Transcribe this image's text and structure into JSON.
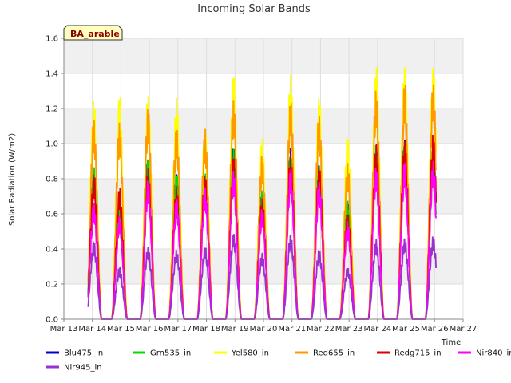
{
  "chart_data": {
    "type": "line",
    "title": "Incoming Solar Bands",
    "xlabel": "Time",
    "ylabel": "Solar Radiation (W/m2)",
    "badge": "BA_arable",
    "ylim": [
      0,
      1.6
    ],
    "yticks": [
      0.0,
      0.2,
      0.4,
      0.6,
      0.8,
      1.0,
      1.2,
      1.4,
      1.6
    ],
    "xlim": [
      13,
      27
    ],
    "xticks": [
      {
        "v": 13,
        "label": "Mar 13"
      },
      {
        "v": 14,
        "label": "Mar 14"
      },
      {
        "v": 15,
        "label": "Mar 15"
      },
      {
        "v": 16,
        "label": "Mar 16"
      },
      {
        "v": 17,
        "label": "Mar 17"
      },
      {
        "v": 18,
        "label": "Mar 18"
      },
      {
        "v": 19,
        "label": "Mar 19"
      },
      {
        "v": 20,
        "label": "Mar 20"
      },
      {
        "v": 21,
        "label": "Mar 21"
      },
      {
        "v": 22,
        "label": "Mar 22"
      },
      {
        "v": 23,
        "label": "Mar 23"
      },
      {
        "v": 24,
        "label": "Mar 24"
      },
      {
        "v": 25,
        "label": "Mar 25"
      },
      {
        "v": 26,
        "label": "Mar 26"
      },
      {
        "v": 27,
        "label": "Mar 27"
      }
    ],
    "grid": true,
    "legend_position": "bottom",
    "series": [
      {
        "name": "Blu475_in",
        "color": "#0000cc",
        "peaks": [
          0.85,
          0.62,
          0.92,
          0.84,
          0.83,
          1.0,
          0.73,
          0.98,
          0.9,
          0.68,
          1.0,
          1.03,
          0.98
        ]
      },
      {
        "name": "Grn535_in",
        "color": "#00dd00",
        "peaks": [
          0.88,
          0.63,
          0.93,
          0.85,
          0.84,
          0.99,
          0.74,
          0.96,
          0.88,
          0.69,
          1.0,
          1.02,
          1.0
        ]
      },
      {
        "name": "Yel580_in",
        "color": "#ffff00",
        "peaks": [
          1.27,
          1.3,
          1.3,
          1.27,
          1.12,
          1.41,
          1.06,
          1.4,
          1.29,
          1.06,
          1.46,
          1.46,
          1.45
        ]
      },
      {
        "name": "Red655_in",
        "color": "#ff9900",
        "peaks": [
          1.16,
          1.14,
          1.22,
          1.12,
          1.09,
          1.28,
          0.94,
          1.27,
          1.18,
          0.9,
          1.33,
          1.36,
          1.38
        ]
      },
      {
        "name": "Redg715_in",
        "color": "#dd0000",
        "peaks": [
          0.84,
          0.76,
          0.88,
          0.76,
          0.84,
          0.94,
          0.7,
          0.95,
          0.88,
          0.62,
          1.0,
          1.04,
          1.06
        ]
      },
      {
        "name": "Nir840_in",
        "color": "#ff00ff",
        "peaks": [
          0.68,
          0.6,
          0.8,
          0.7,
          0.76,
          0.86,
          0.64,
          0.87,
          0.8,
          0.56,
          0.89,
          0.91,
          0.92
        ]
      },
      {
        "name": "Nir945_in",
        "color": "#9933cc",
        "peaks": [
          0.45,
          0.3,
          0.42,
          0.4,
          0.42,
          0.5,
          0.38,
          0.49,
          0.4,
          0.3,
          0.46,
          0.47,
          0.48
        ]
      }
    ],
    "day_centers": [
      14.05,
      14.95,
      15.95,
      16.95,
      17.95,
      18.95,
      19.95,
      20.95,
      21.95,
      22.95,
      23.95,
      24.95,
      25.95
    ]
  }
}
